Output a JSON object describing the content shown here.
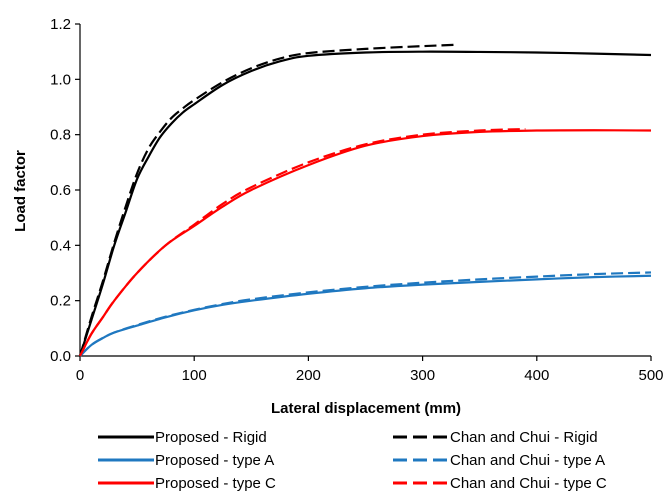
{
  "chart_data": {
    "type": "line",
    "xlabel": "Lateral displacement (mm)",
    "ylabel": "Load factor",
    "xlim": [
      0,
      500
    ],
    "ylim": [
      0,
      1.2
    ],
    "x_ticks": [
      "0",
      "100",
      "200",
      "300",
      "400",
      "500"
    ],
    "y_ticks": [
      "0.0",
      "0.2",
      "0.4",
      "0.6",
      "0.8",
      "1.0",
      "1.2"
    ],
    "grid": false,
    "legend_position": "bottom",
    "series": [
      {
        "name": "Proposed - Rigid",
        "color": "#000000",
        "dash": "solid",
        "x": [
          0,
          10,
          20,
          30,
          40,
          50,
          60,
          70,
          80,
          90,
          100,
          125,
          150,
          175,
          200,
          250,
          300,
          350,
          400,
          450,
          500
        ],
        "y": [
          0,
          0.13,
          0.26,
          0.4,
          0.52,
          0.64,
          0.72,
          0.79,
          0.84,
          0.88,
          0.91,
          0.98,
          1.03,
          1.065,
          1.085,
          1.097,
          1.1,
          1.099,
          1.097,
          1.093,
          1.088
        ]
      },
      {
        "name": "Proposed - type A",
        "color": "#1f78c0",
        "dash": "solid",
        "x": [
          0,
          10,
          20,
          30,
          50,
          75,
          100,
          125,
          150,
          200,
          250,
          300,
          350,
          400,
          450,
          500
        ],
        "y": [
          0,
          0.04,
          0.065,
          0.085,
          0.11,
          0.14,
          0.165,
          0.185,
          0.2,
          0.225,
          0.245,
          0.258,
          0.268,
          0.277,
          0.285,
          0.29
        ]
      },
      {
        "name": "Proposed - type C",
        "color": "#ff0000",
        "dash": "solid",
        "x": [
          0,
          10,
          20,
          30,
          50,
          75,
          100,
          125,
          150,
          200,
          250,
          300,
          350,
          400,
          450,
          500
        ],
        "y": [
          0,
          0.08,
          0.14,
          0.2,
          0.3,
          0.4,
          0.47,
          0.54,
          0.6,
          0.69,
          0.76,
          0.795,
          0.81,
          0.815,
          0.816,
          0.815
        ]
      },
      {
        "name": "Chan and Chui - Rigid",
        "color": "#000000",
        "dash": "dashed",
        "x": [
          0,
          10,
          20,
          30,
          40,
          50,
          60,
          70,
          80,
          90,
          100,
          125,
          150,
          175,
          200,
          250,
          300,
          330
        ],
        "y": [
          0,
          0.14,
          0.27,
          0.41,
          0.54,
          0.66,
          0.75,
          0.81,
          0.86,
          0.895,
          0.925,
          0.99,
          1.04,
          1.075,
          1.095,
          1.11,
          1.12,
          1.125
        ]
      },
      {
        "name": "Chan and Chui - type A",
        "color": "#1f78c0",
        "dash": "dashed",
        "x": [
          0,
          10,
          20,
          30,
          50,
          75,
          100,
          125,
          150,
          200,
          250,
          300,
          350,
          400,
          450,
          500
        ],
        "y": [
          0,
          0.04,
          0.065,
          0.085,
          0.112,
          0.142,
          0.167,
          0.188,
          0.205,
          0.23,
          0.25,
          0.265,
          0.277,
          0.287,
          0.296,
          0.302
        ]
      },
      {
        "name": "Chan and Chui - type C",
        "color": "#ff0000",
        "dash": "dashed",
        "x": [
          0,
          10,
          20,
          30,
          50,
          75,
          100,
          125,
          150,
          200,
          250,
          300,
          350,
          390
        ],
        "y": [
          0,
          0.08,
          0.14,
          0.2,
          0.3,
          0.4,
          0.475,
          0.55,
          0.61,
          0.7,
          0.765,
          0.8,
          0.815,
          0.82
        ]
      }
    ]
  }
}
